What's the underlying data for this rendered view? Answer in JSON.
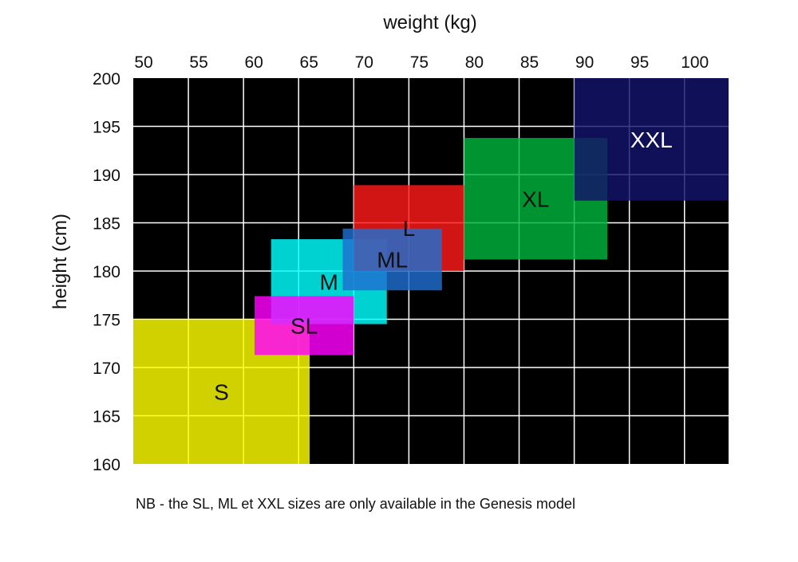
{
  "chart_data": {
    "type": "heatmap",
    "title": "",
    "xlabel": "weight (kg)",
    "ylabel": "height (cm)",
    "x_axis_position": "top",
    "xlim": [
      50,
      104
    ],
    "ylim": [
      160,
      200
    ],
    "xticks": [
      50,
      55,
      60,
      65,
      70,
      75,
      80,
      85,
      90,
      95,
      100
    ],
    "yticks": [
      160,
      165,
      170,
      175,
      180,
      185,
      190,
      195,
      200
    ],
    "grid": true,
    "background": "#000000",
    "grid_color": "#ffffff",
    "regions": [
      {
        "label": "S",
        "weight": [
          50,
          66
        ],
        "height": [
          160,
          175
        ],
        "color": "#ffff00",
        "text_color": "#111111"
      },
      {
        "label": "M",
        "weight": [
          62.5,
          73
        ],
        "height": [
          174.5,
          183.3
        ],
        "color": "#00ffff",
        "text_color": "#111111"
      },
      {
        "label": "SL",
        "weight": [
          61,
          70
        ],
        "height": [
          171.3,
          177.4
        ],
        "color": "#ff00ff",
        "text_color": "#111111"
      },
      {
        "label": "L",
        "weight": [
          70,
          80
        ],
        "height": [
          180,
          188.9
        ],
        "color": "#ff1a1a",
        "text_color": "#111111"
      },
      {
        "label": "ML",
        "weight": [
          69,
          78
        ],
        "height": [
          178,
          184.4
        ],
        "color": "#1f6fd0",
        "text_color": "#111111"
      },
      {
        "label": "XL",
        "weight": [
          80,
          93
        ],
        "height": [
          181.2,
          193.8
        ],
        "color": "#00b33c",
        "text_color": "#111111"
      },
      {
        "label": "XXL",
        "weight": [
          90,
          104
        ],
        "height": [
          187.3,
          200
        ],
        "color": "#14146b",
        "text_color": "#ffffff"
      }
    ]
  },
  "footnote": "NB - the SL, ML et XXL sizes are only available in the Genesis model"
}
